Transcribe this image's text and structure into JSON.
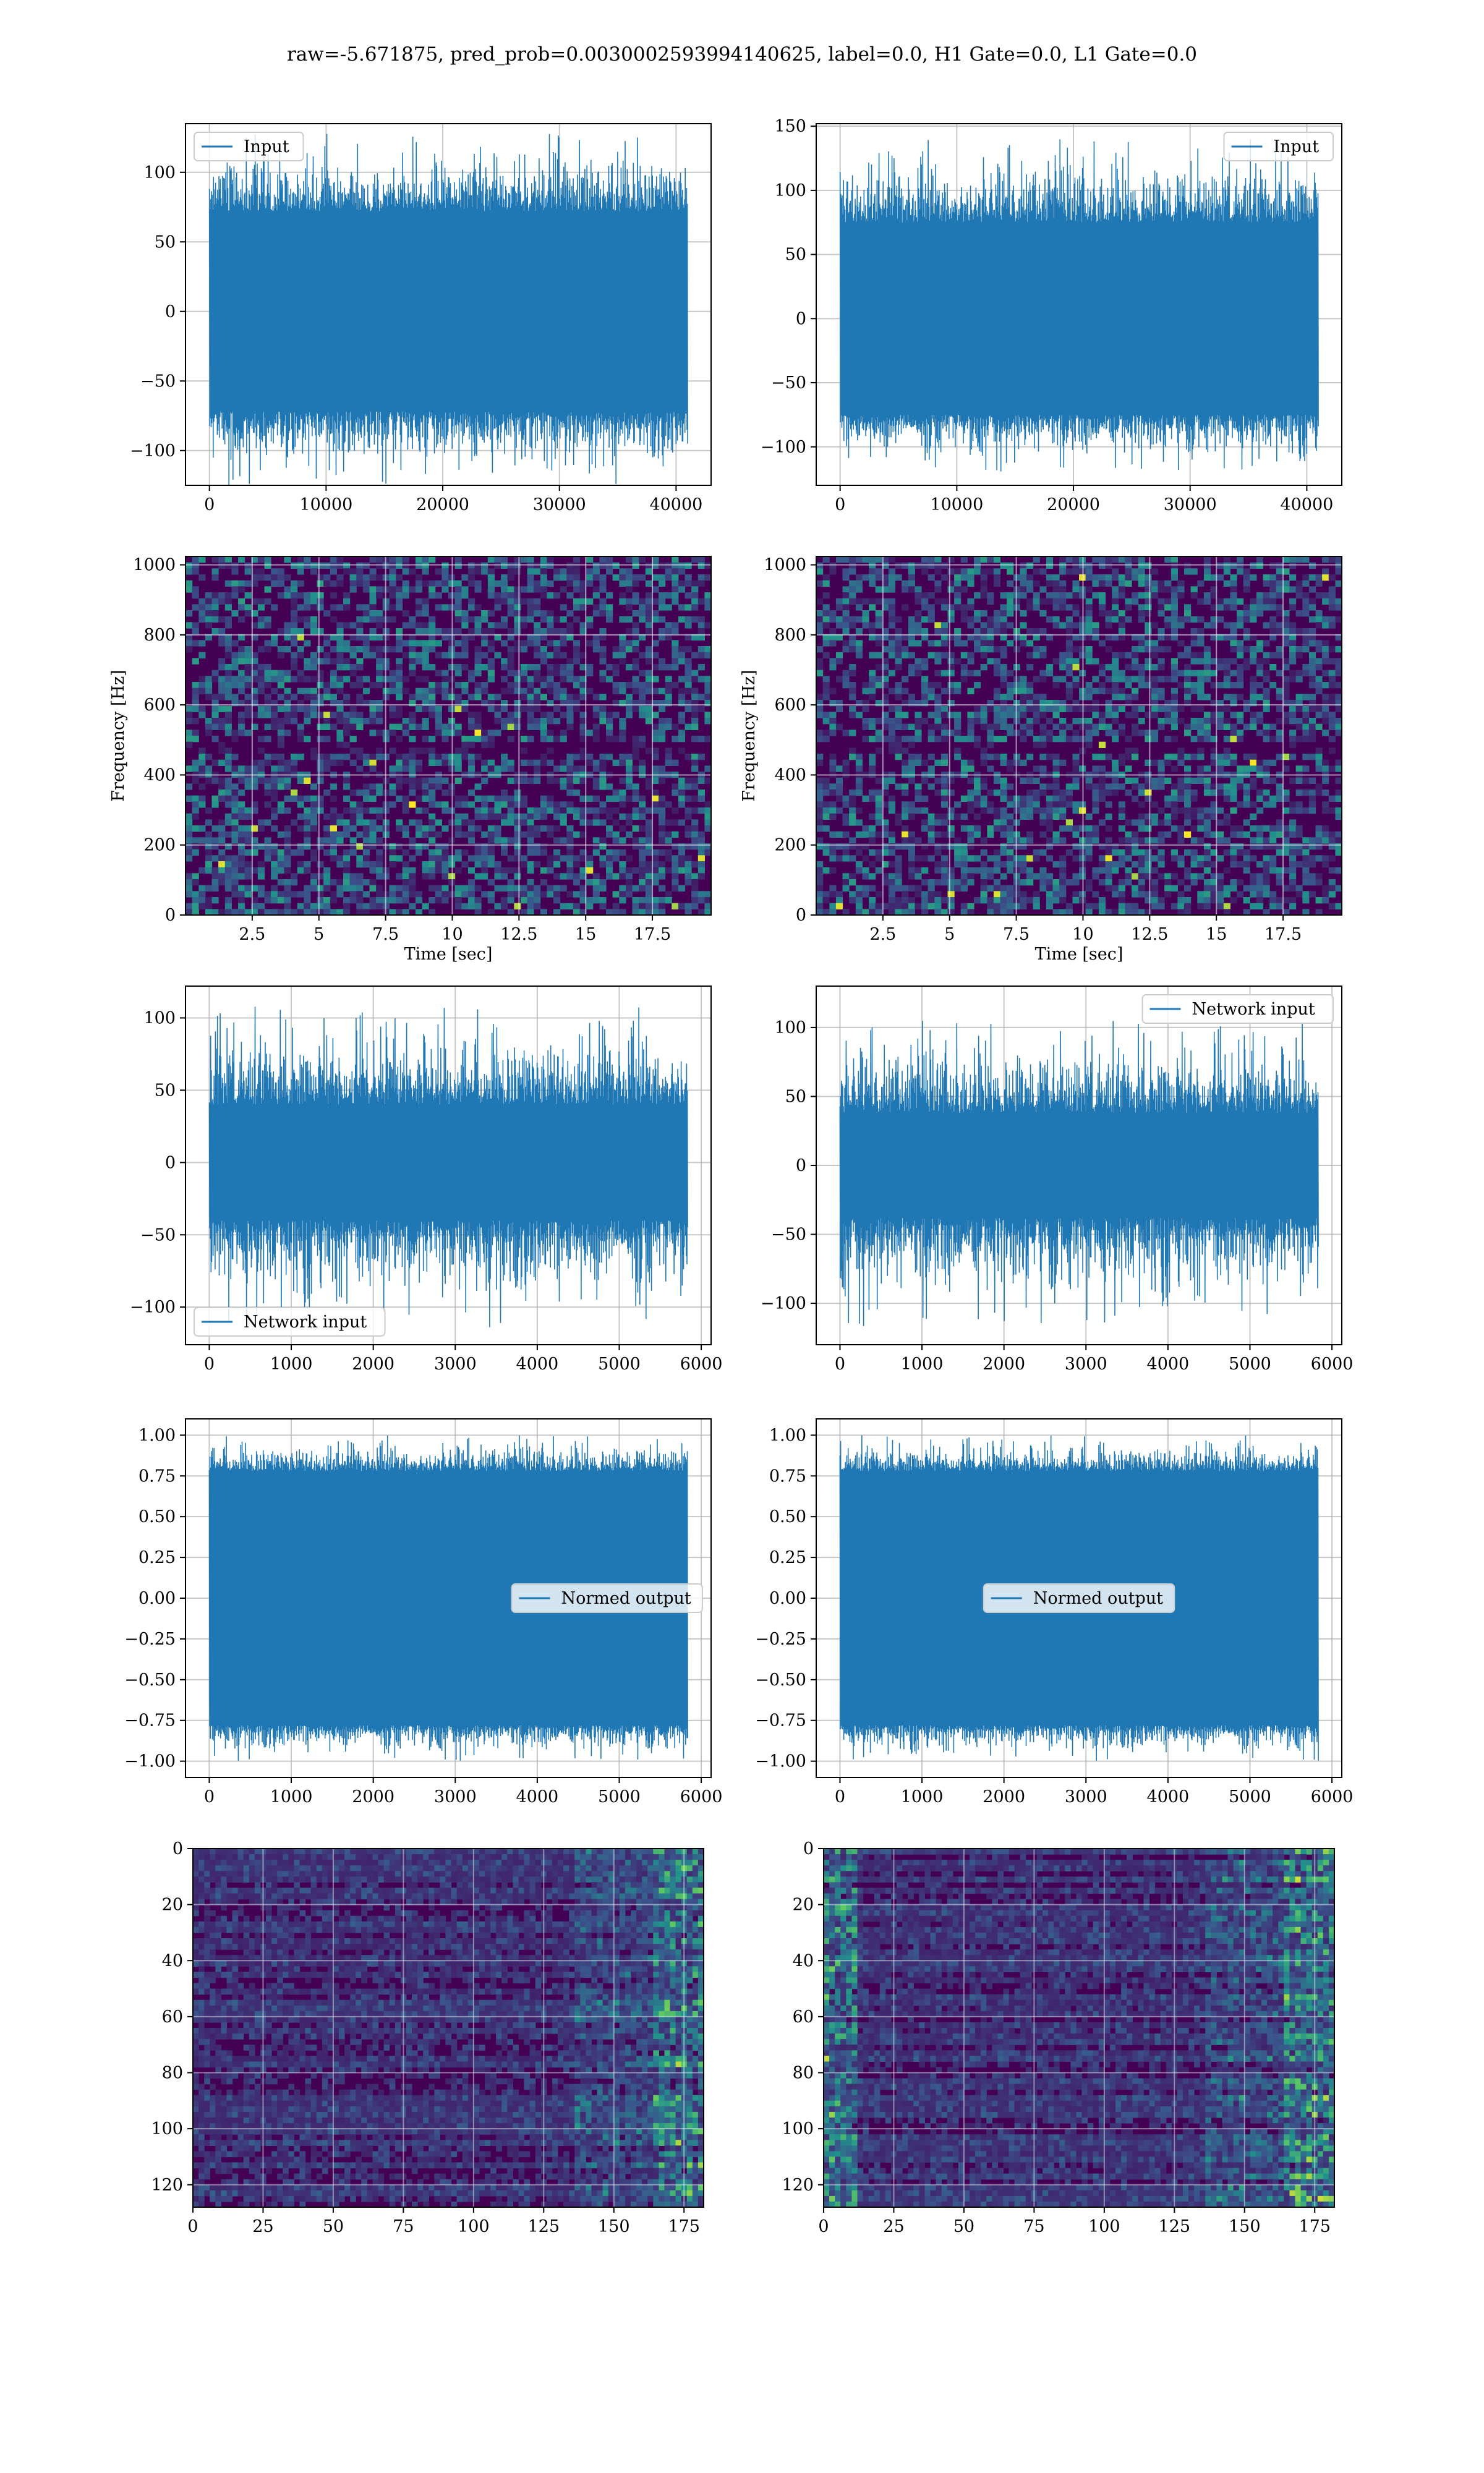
{
  "suptitle": "raw=-5.671875, pred_prob=0.003000259399414062 5, label=0.0, H1 Gate=0.0, L1 Gate=0.0",
  "colors": {
    "line": "#1f77b4",
    "viridis_dark": "#440154",
    "viridis_mid": "#21918c",
    "viridis_bright": "#fde725",
    "grid": "#b0b0b0",
    "axes": "#000000"
  },
  "chart_data": [
    {
      "id": "h1_input",
      "type": "line",
      "series": [
        {
          "name": "Input",
          "values_desc": "",
          "band": [
            -72,
            72
          ],
          "spikes": [
            -125,
            128
          ]
        }
      ],
      "xlim": [
        -2050,
        43000
      ],
      "ylim": [
        -125,
        135
      ],
      "xticks": [
        0,
        10000,
        20000,
        30000,
        40000
      ],
      "yticks": [
        -100,
        -50,
        0,
        50,
        100
      ],
      "x_extent": [
        0,
        40960
      ],
      "legend": "top-left",
      "legend_label": "Input",
      "grid": true
    },
    {
      "id": "l1_input",
      "type": "line",
      "series": [
        {
          "name": "Input",
          "band": [
            -75,
            75
          ],
          "spikes": [
            -120,
            140
          ]
        }
      ],
      "xlim": [
        -2050,
        43000
      ],
      "ylim": [
        -130,
        152
      ],
      "xticks": [
        0,
        10000,
        20000,
        30000,
        40000
      ],
      "yticks": [
        -100,
        -50,
        0,
        50,
        100,
        150
      ],
      "x_extent": [
        0,
        40960
      ],
      "legend": "top-right",
      "legend_label": "Input",
      "grid": true
    },
    {
      "id": "h1_spec",
      "type": "heatmap",
      "xlabel": "Time [sec]",
      "ylabel": "Frequency [Hz]",
      "xlim": [
        0,
        19.7
      ],
      "ylim": [
        0,
        1024
      ],
      "xticks": [
        2.5,
        5.0,
        7.5,
        10.0,
        12.5,
        15.0,
        17.5
      ],
      "yticks": [
        0,
        200,
        400,
        600,
        800,
        1000
      ],
      "dark_band_hz": [
        500,
        460
      ],
      "grid": true,
      "colormap": "viridis"
    },
    {
      "id": "l1_spec",
      "type": "heatmap",
      "xlabel": "Time [sec]",
      "ylabel": "Frequency [Hz]",
      "xlim": [
        0,
        19.7
      ],
      "ylim": [
        0,
        1024
      ],
      "xticks": [
        2.5,
        5.0,
        7.5,
        10.0,
        12.5,
        15.0,
        17.5
      ],
      "yticks": [
        0,
        200,
        400,
        600,
        800,
        1000
      ],
      "dark_band_hz": [
        500,
        460
      ],
      "grid": true,
      "colormap": "viridis"
    },
    {
      "id": "h1_net",
      "type": "line",
      "series": [
        {
          "name": "Network input",
          "band": [
            -40,
            40
          ],
          "spikes": [
            -115,
            108
          ]
        }
      ],
      "xlim": [
        -290,
        6120
      ],
      "ylim": [
        -126,
        122
      ],
      "xticks": [
        0,
        1000,
        2000,
        3000,
        4000,
        5000,
        6000
      ],
      "yticks": [
        -100,
        -50,
        0,
        50,
        100
      ],
      "x_extent": [
        0,
        5830
      ],
      "legend": "bottom-left",
      "legend_label": "Network input",
      "grid": true
    },
    {
      "id": "l1_net",
      "type": "line",
      "series": [
        {
          "name": "Network input",
          "band": [
            -38,
            38
          ],
          "spikes": [
            -118,
            105
          ]
        }
      ],
      "xlim": [
        -290,
        6120
      ],
      "ylim": [
        -130,
        130
      ],
      "xticks": [
        0,
        1000,
        2000,
        3000,
        4000,
        5000,
        6000
      ],
      "yticks": [
        -100,
        -50,
        0,
        50,
        100
      ],
      "x_extent": [
        0,
        5830
      ],
      "legend": "top-right",
      "legend_label": "Network input",
      "grid": true
    },
    {
      "id": "h1_norm",
      "type": "line",
      "series": [
        {
          "name": "Normed output",
          "band": [
            -0.78,
            0.78
          ],
          "spikes": [
            -1.0,
            1.0
          ]
        }
      ],
      "xlim": [
        -290,
        6120
      ],
      "ylim": [
        -1.1,
        1.1
      ],
      "xticks": [
        0,
        1000,
        2000,
        3000,
        4000,
        5000,
        6000
      ],
      "yticks": [
        -1.0,
        -0.75,
        -0.5,
        -0.25,
        0.0,
        0.25,
        0.5,
        0.75,
        1.0
      ],
      "ytick_labels": [
        "−1.00",
        "−0.75",
        "−0.50",
        "−0.25",
        "0.00",
        "0.25",
        "0.50",
        "0.75",
        "1.00"
      ],
      "x_extent": [
        0,
        5830
      ],
      "legend": "center-right",
      "legend_label": "Normed output",
      "grid": true
    },
    {
      "id": "l1_norm",
      "type": "line",
      "series": [
        {
          "name": "Normed output",
          "band": [
            -0.78,
            0.78
          ],
          "spikes": [
            -1.0,
            1.0
          ]
        }
      ],
      "xlim": [
        -290,
        6120
      ],
      "ylim": [
        -1.1,
        1.1
      ],
      "xticks": [
        0,
        1000,
        2000,
        3000,
        4000,
        5000,
        6000
      ],
      "yticks": [
        -1.0,
        -0.75,
        -0.5,
        -0.25,
        0.0,
        0.25,
        0.5,
        0.75,
        1.0
      ],
      "ytick_labels": [
        "−1.00",
        "−0.75",
        "−0.50",
        "−0.25",
        "0.00",
        "0.25",
        "0.50",
        "0.75",
        "1.00"
      ],
      "x_extent": [
        0,
        5830
      ],
      "legend": "center",
      "legend_label": "Normed output",
      "grid": true
    },
    {
      "id": "h1_feat",
      "type": "heatmap",
      "xlim": [
        0,
        182
      ],
      "ylim": [
        128,
        0
      ],
      "xticks": [
        0,
        25,
        50,
        75,
        100,
        125,
        150,
        175
      ],
      "yticks": [
        0,
        20,
        40,
        60,
        80,
        100,
        120
      ],
      "grid": true,
      "colormap": "viridis",
      "bright_side": "right"
    },
    {
      "id": "l1_feat",
      "type": "heatmap",
      "xlim": [
        0,
        182
      ],
      "ylim": [
        128,
        0
      ],
      "xticks": [
        0,
        25,
        50,
        75,
        100,
        125,
        150,
        175
      ],
      "yticks": [
        0,
        20,
        40,
        60,
        80,
        100,
        120
      ],
      "grid": true,
      "colormap": "viridis",
      "bright_side": "both"
    }
  ]
}
